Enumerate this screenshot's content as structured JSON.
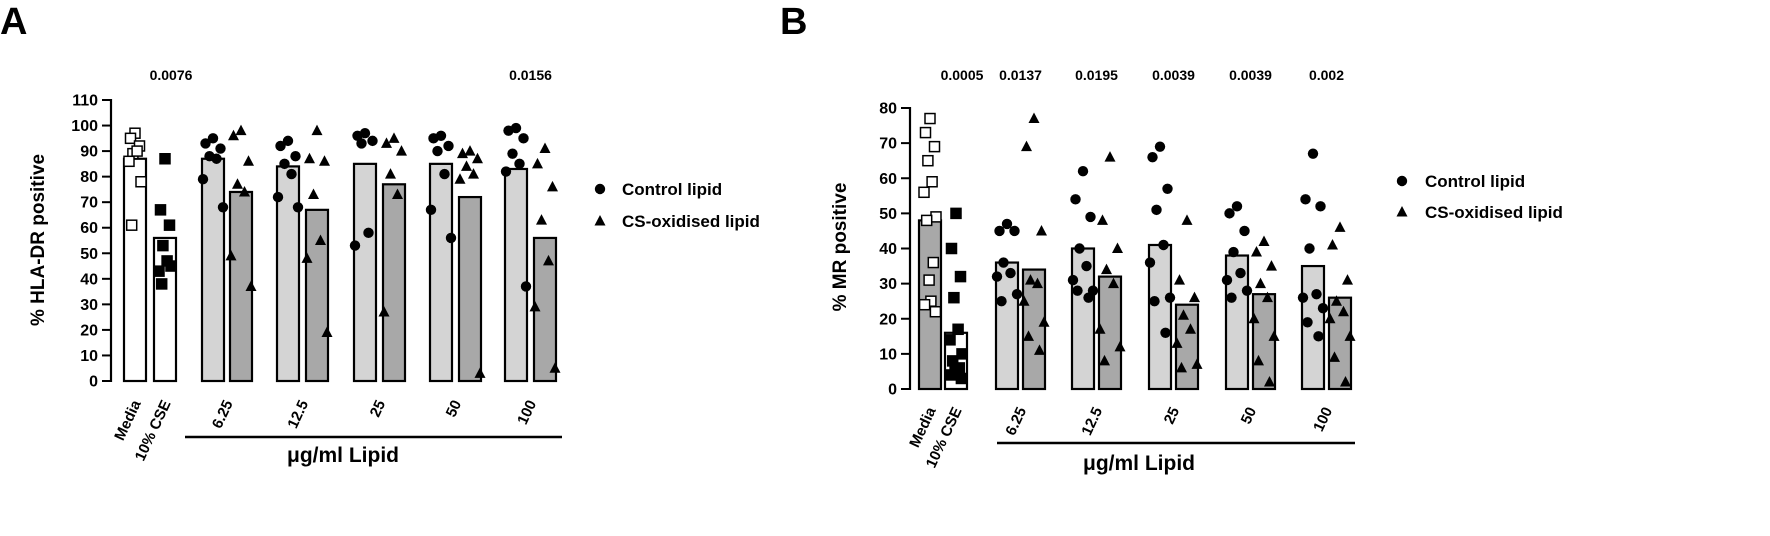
{
  "chart_data": [
    {
      "panel_label": "A",
      "type": "bar",
      "ylabel": "% HLA-DR positive",
      "xlabel": "μg/ml Lipid",
      "ylim": [
        0,
        110
      ],
      "yticks": [
        0,
        10,
        20,
        30,
        40,
        50,
        60,
        70,
        80,
        90,
        100,
        110
      ],
      "ref_categories": [
        {
          "label": "Media",
          "mean": 87,
          "points": [
            97,
            95,
            92,
            89,
            90,
            86,
            78,
            61
          ]
        },
        {
          "label": "10% CSE",
          "mean": 56,
          "points": [
            87,
            67,
            61,
            53,
            47,
            43,
            45,
            38
          ]
        }
      ],
      "categories": [
        "6.25",
        "12.5",
        "25",
        "50",
        "100"
      ],
      "series": [
        {
          "name": "Control lipid",
          "means": [
            87,
            84,
            85,
            85,
            83
          ],
          "points": [
            [
              95,
              93,
              91,
              88,
              87,
              79,
              68
            ],
            [
              94,
              92,
              88,
              85,
              81,
              72,
              68
            ],
            [
              97,
              96,
              94,
              93,
              58,
              53
            ],
            [
              96,
              95,
              92,
              90,
              81,
              67,
              56
            ],
            [
              99,
              98,
              95,
              89,
              85,
              82,
              37
            ]
          ]
        },
        {
          "name": "CS-oxidised lipid",
          "means": [
            74,
            67,
            77,
            72,
            56
          ],
          "points": [
            [
              98,
              96,
              86,
              77,
              74,
              49,
              37
            ],
            [
              98,
              87,
              86,
              73,
              55,
              48,
              19
            ],
            [
              95,
              93,
              90,
              81,
              73,
              27
            ],
            [
              90,
              89,
              87,
              84,
              81,
              79,
              3
            ],
            [
              91,
              85,
              76,
              63,
              47,
              29,
              5
            ]
          ]
        }
      ],
      "pvalues": [
        {
          "text": "0.0076",
          "above": "10% CSE"
        },
        {
          "text": "0.0156",
          "above": "100"
        }
      ],
      "legend_position": "right"
    },
    {
      "panel_label": "B",
      "type": "bar",
      "ylabel": "% MR positive",
      "xlabel": "μg/ml Lipid",
      "ylim": [
        0,
        80
      ],
      "yticks": [
        0,
        10,
        20,
        30,
        40,
        50,
        60,
        70,
        80
      ],
      "ref_categories": [
        {
          "label": "Media",
          "mean": 48,
          "points": [
            77,
            73,
            69,
            65,
            59,
            56,
            49,
            48,
            36,
            31,
            25,
            24,
            22
          ]
        },
        {
          "label": "10% CSE",
          "mean": 16,
          "points": [
            50,
            40,
            32,
            26,
            17,
            14,
            10,
            8,
            6,
            5,
            5,
            4,
            3
          ]
        }
      ],
      "categories": [
        "6.25",
        "12.5",
        "25",
        "50",
        "100"
      ],
      "series": [
        {
          "name": "Control lipid",
          "means": [
            36,
            40,
            41,
            38,
            35
          ],
          "points": [
            [
              47,
              45,
              45,
              36,
              33,
              32,
              27,
              25
            ],
            [
              62,
              54,
              49,
              40,
              35,
              31,
              28,
              28,
              26
            ],
            [
              69,
              66,
              57,
              51,
              41,
              36,
              26,
              25,
              16
            ],
            [
              52,
              50,
              45,
              39,
              33,
              31,
              28,
              26
            ],
            [
              67,
              54,
              52,
              40,
              27,
              26,
              23,
              19,
              15
            ]
          ]
        },
        {
          "name": "CS-oxidised lipid",
          "means": [
            34,
            32,
            24,
            27,
            26
          ],
          "points": [
            [
              77,
              69,
              45,
              31,
              30,
              25,
              19,
              15,
              11
            ],
            [
              66,
              48,
              40,
              34,
              30,
              17,
              12,
              8
            ],
            [
              48,
              31,
              26,
              21,
              17,
              13,
              7,
              6
            ],
            [
              42,
              39,
              35,
              30,
              26,
              20,
              15,
              8,
              2
            ],
            [
              46,
              41,
              31,
              25,
              22,
              20,
              15,
              9,
              2
            ]
          ]
        }
      ],
      "pvalues": [
        {
          "text": "0.0005",
          "above": "10% CSE"
        },
        {
          "text": "0.0137",
          "above": "6.25"
        },
        {
          "text": "0.0195",
          "above": "12.5"
        },
        {
          "text": "0.0039",
          "above": "25"
        },
        {
          "text": "0.0039",
          "above": "50"
        },
        {
          "text": "0.002",
          "above": "100"
        }
      ],
      "legend_position": "right"
    }
  ],
  "colors": {
    "light_bar": "#d4d4d4",
    "dark_bar": "#a8a8a8",
    "marker": "#000000",
    "axis": "#000000"
  }
}
